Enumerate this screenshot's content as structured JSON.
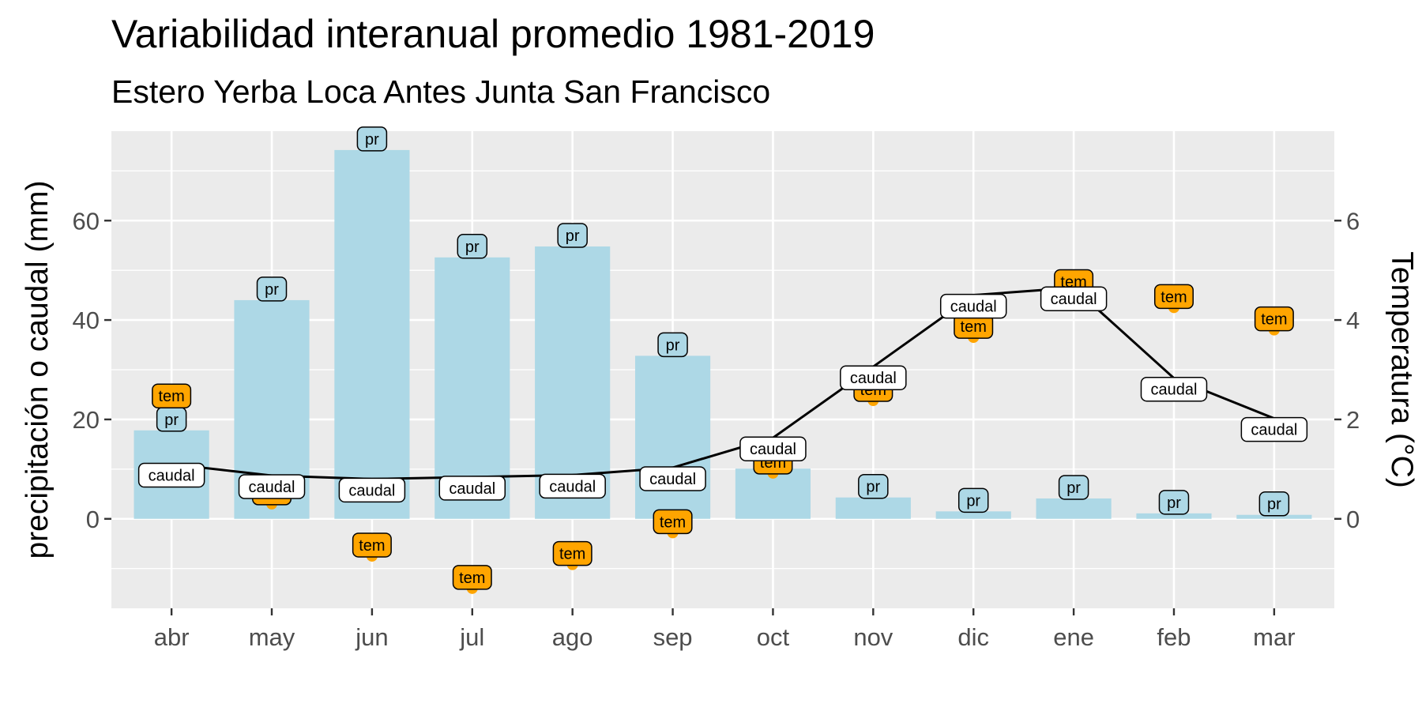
{
  "chart_data": {
    "type": "bar",
    "title": "Variabilidad interanual promedio 1981-2019",
    "subtitle": "Estero Yerba Loca Antes Junta San Francisco",
    "ylabel": "precipitación o caudal (mm)",
    "y2label": "Temperatura (°C)",
    "categories": [
      "abr",
      "may",
      "jun",
      "jul",
      "ago",
      "sep",
      "oct",
      "nov",
      "dic",
      "ene",
      "feb",
      "mar"
    ],
    "ylim": [
      -18,
      78
    ],
    "yticks": [
      0,
      20,
      40,
      60
    ],
    "y2lim": [
      -1.8,
      7.8
    ],
    "y2ticks": [
      0,
      2,
      4,
      6
    ],
    "grid": true,
    "series": [
      {
        "name": "pr",
        "kind": "bar",
        "label": "pr",
        "color": "#add8e6",
        "values": [
          17.8,
          44.0,
          74.2,
          52.6,
          54.8,
          32.8,
          10.1,
          4.3,
          1.5,
          4.1,
          1.1,
          0.8
        ]
      },
      {
        "name": "caudal",
        "kind": "line",
        "label": "caudal",
        "color": "#000000",
        "values": [
          11.0,
          8.7,
          8.0,
          8.4,
          8.8,
          10.3,
          16.3,
          30.6,
          45.0,
          46.5,
          28.3,
          20.2
        ]
      },
      {
        "name": "tem",
        "kind": "point",
        "axis": "right",
        "label": "tem",
        "color": "#ffa500",
        "values": [
          2.25,
          0.3,
          -0.75,
          -1.4,
          -0.92,
          -0.28,
          0.92,
          2.38,
          3.65,
          4.55,
          4.25,
          3.8
        ]
      }
    ]
  }
}
